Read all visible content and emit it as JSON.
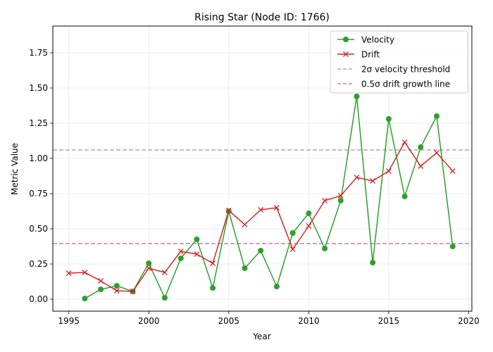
{
  "chart_data": {
    "type": "line",
    "title": "Rising Star (Node ID: 1766)",
    "xlabel": "Year",
    "ylabel": "Metric Value",
    "xlim": [
      1994,
      2020.2
    ],
    "ylim": [
      -0.085,
      1.94
    ],
    "xticks": [
      1995,
      2000,
      2005,
      2010,
      2015,
      2020
    ],
    "yticks": [
      0.0,
      0.25,
      0.5,
      0.75,
      1.0,
      1.25,
      1.5,
      1.75
    ],
    "ytick_labels": [
      "0.00",
      "0.25",
      "0.50",
      "0.75",
      "1.00",
      "1.25",
      "1.50",
      "1.75"
    ],
    "grid": true,
    "legend_position": "top-right",
    "series": [
      {
        "name": "Velocity",
        "color": "#2ca02c",
        "marker": "circle",
        "x": [
          1996,
          1997,
          1998,
          1999,
          2000,
          2001,
          2002,
          2003,
          2004,
          2005,
          2006,
          2007,
          2008,
          2009,
          2010,
          2011,
          2012,
          2013,
          2014,
          2015,
          2016,
          2017,
          2018,
          2019
        ],
        "values": [
          0.005,
          0.07,
          0.095,
          0.055,
          0.255,
          0.01,
          0.29,
          0.425,
          0.08,
          0.625,
          0.22,
          0.345,
          0.09,
          0.47,
          0.61,
          0.36,
          0.7,
          1.44,
          0.26,
          1.28,
          0.73,
          1.08,
          1.3,
          0.375
        ]
      },
      {
        "name": "Drift",
        "color": "#d62728",
        "marker": "x",
        "x": [
          1995,
          1996,
          1997,
          1998,
          1999,
          2000,
          2001,
          2002,
          2003,
          2004,
          2005,
          2006,
          2007,
          2008,
          2009,
          2010,
          2011,
          2012,
          2013,
          2014,
          2015,
          2016,
          2017,
          2018,
          2019
        ],
        "values": [
          0.185,
          0.19,
          0.13,
          0.06,
          0.055,
          0.22,
          0.19,
          0.34,
          0.32,
          0.255,
          0.63,
          0.53,
          0.635,
          0.65,
          0.355,
          0.52,
          0.7,
          0.735,
          0.865,
          0.84,
          0.91,
          1.115,
          0.945,
          1.04,
          0.91
        ]
      }
    ],
    "reference_lines": [
      {
        "name": "2σ velocity threshold",
        "value": 1.06,
        "color": "#a9a9a9"
      },
      {
        "name": "0.5σ drift growth line",
        "value": 0.395,
        "color": "#c77cbd"
      }
    ]
  }
}
